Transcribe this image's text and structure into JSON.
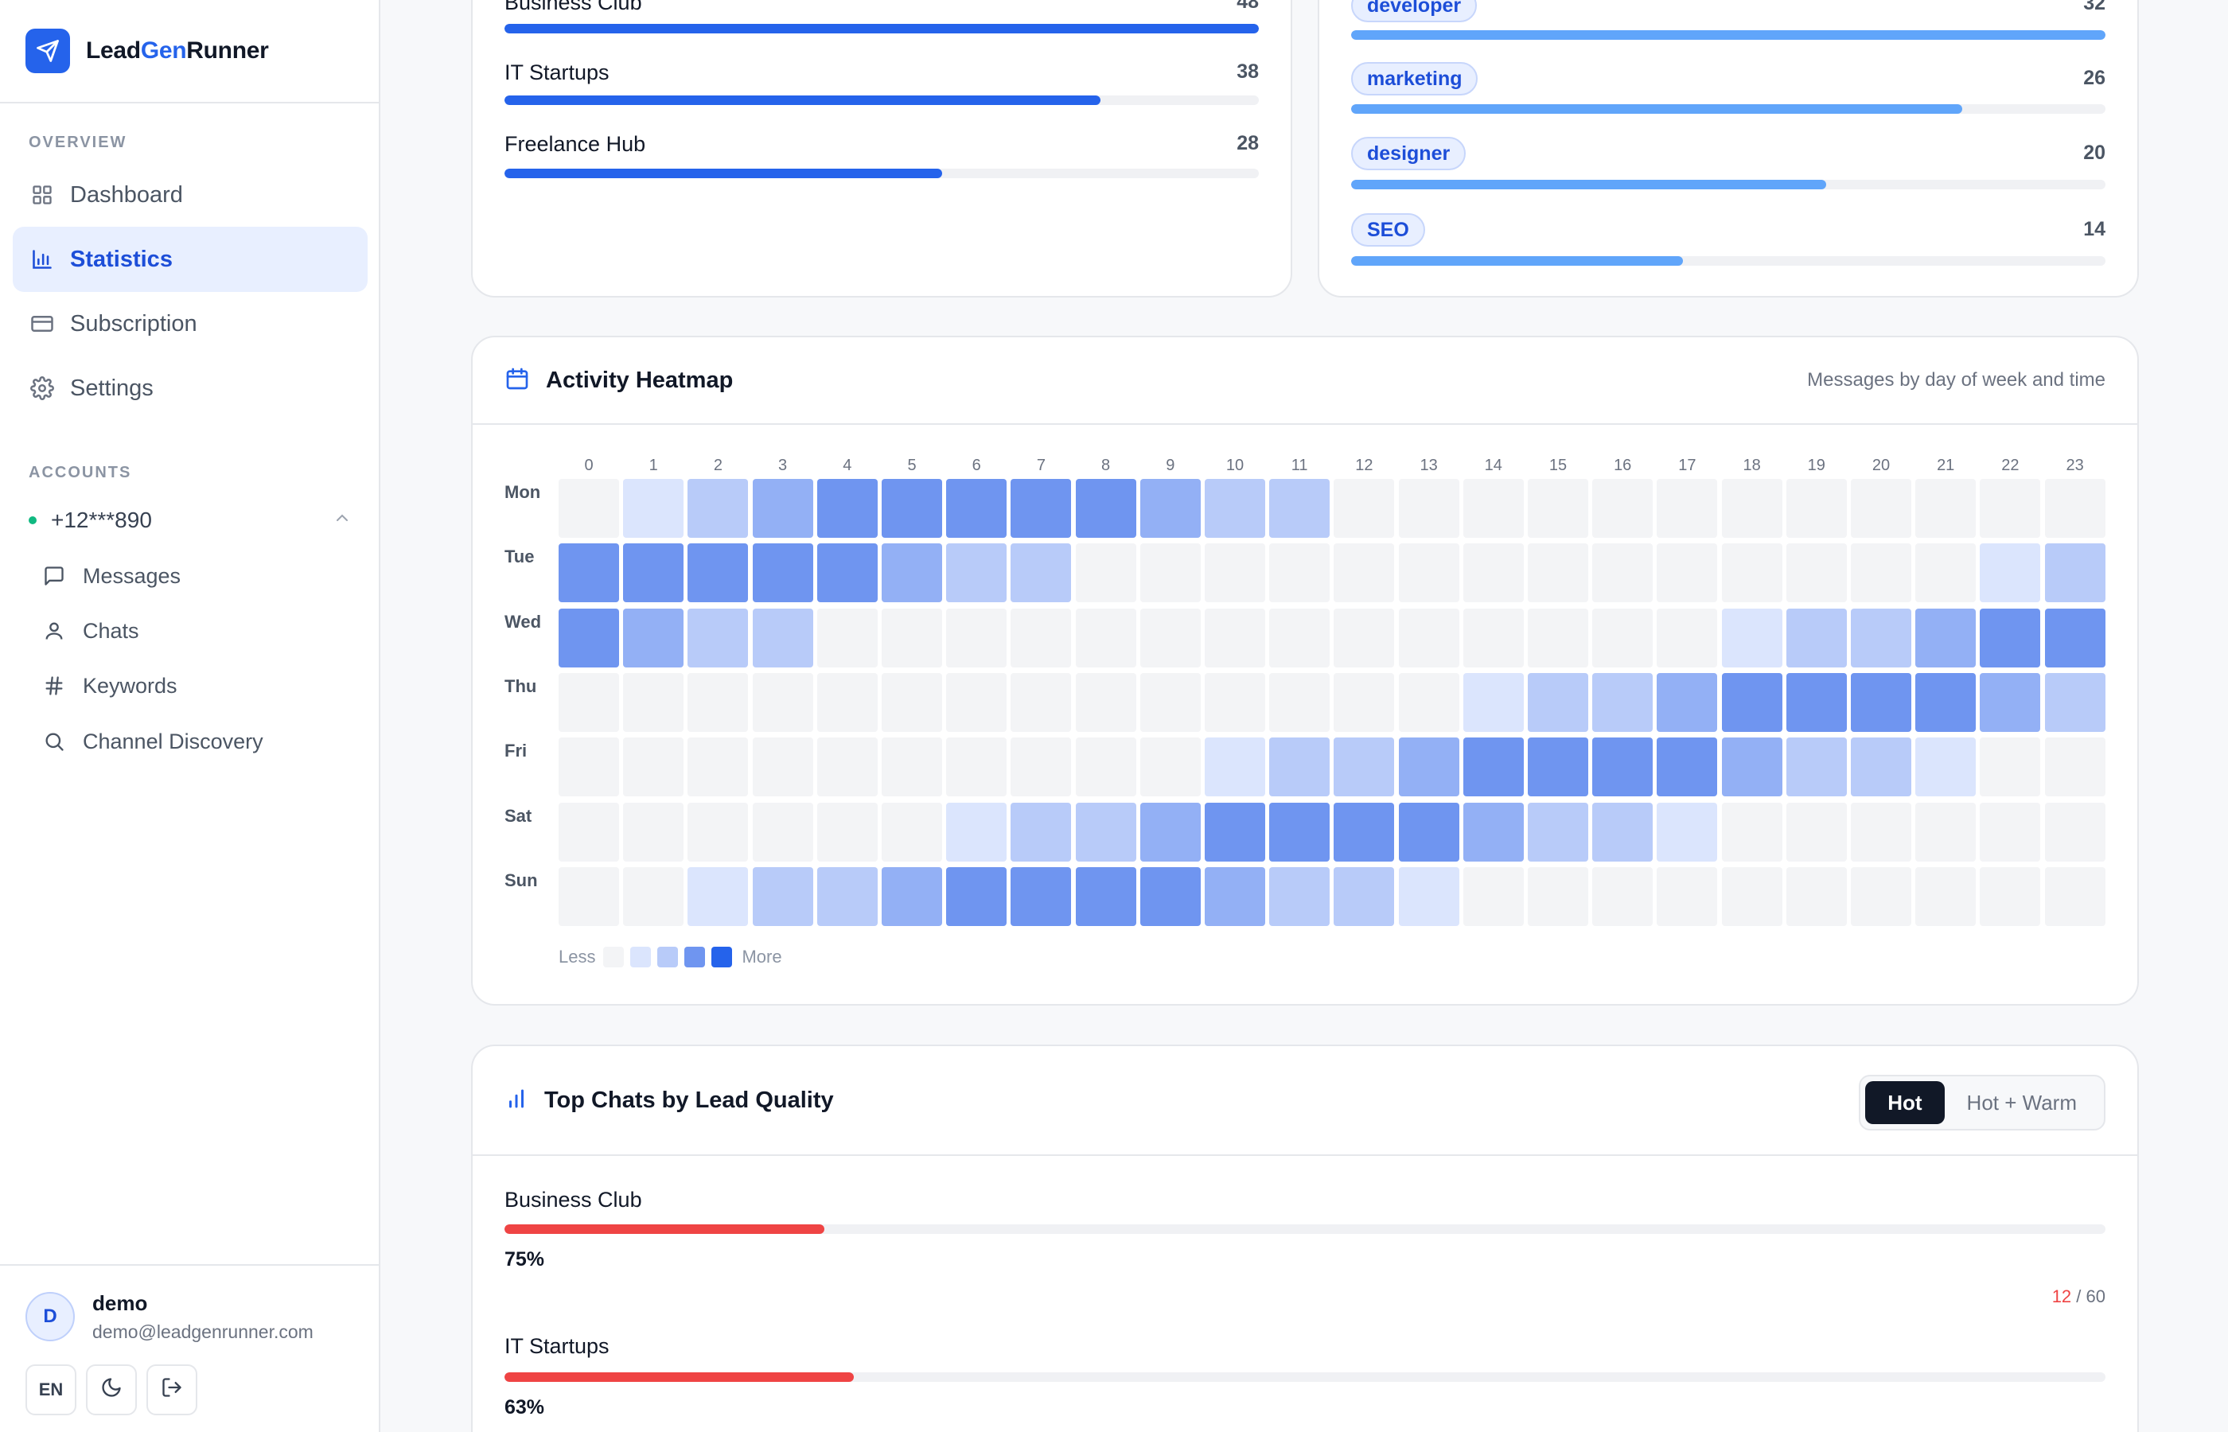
{
  "brand": {
    "name_part1": "Lead",
    "name_part2": "Gen",
    "name_part3": "Runner"
  },
  "sidebar": {
    "overview_label": "OVERVIEW",
    "nav": [
      {
        "label": "Dashboard",
        "icon": "grid-icon",
        "active": false
      },
      {
        "label": "Statistics",
        "icon": "bar-chart-icon",
        "active": true
      },
      {
        "label": "Subscription",
        "icon": "credit-card-icon",
        "active": false
      },
      {
        "label": "Settings",
        "icon": "gear-icon",
        "active": false
      }
    ],
    "accounts_label": "ACCOUNTS",
    "account": {
      "phone": "+12***890",
      "status_color": "#10b981"
    },
    "sub_items": [
      {
        "label": "Messages",
        "icon": "message-icon"
      },
      {
        "label": "Chats",
        "icon": "user-icon"
      },
      {
        "label": "Keywords",
        "icon": "hash-icon"
      },
      {
        "label": "Channel Discovery",
        "icon": "search-icon"
      }
    ],
    "user": {
      "initial": "D",
      "name": "demo",
      "email": "demo@leadgenrunner.com",
      "lang_button": "EN"
    }
  },
  "top_chats_card": {
    "rows": [
      {
        "label": "Business Club",
        "value": "48",
        "ratio": 1.0
      },
      {
        "label": "IT Startups",
        "value": "38",
        "ratio": 0.79
      },
      {
        "label": "Freelance Hub",
        "value": "28",
        "ratio": 0.58
      }
    ]
  },
  "keywords_card": {
    "rows": [
      {
        "label": "developer",
        "value": "32",
        "ratio": 1.0
      },
      {
        "label": "marketing",
        "value": "26",
        "ratio": 0.81
      },
      {
        "label": "designer",
        "value": "20",
        "ratio": 0.63
      },
      {
        "label": "SEO",
        "value": "14",
        "ratio": 0.44
      }
    ]
  },
  "heatmap": {
    "title": "Activity Heatmap",
    "subtitle": "Messages by day of week and time",
    "hours": [
      "0",
      "1",
      "2",
      "3",
      "4",
      "5",
      "6",
      "7",
      "8",
      "9",
      "10",
      "11",
      "12",
      "13",
      "14",
      "15",
      "16",
      "17",
      "18",
      "19",
      "20",
      "21",
      "22",
      "23"
    ],
    "days": [
      "Mon",
      "Tue",
      "Wed",
      "Thu",
      "Fri",
      "Sat",
      "Sun"
    ],
    "levels": [
      [
        0,
        1,
        2,
        3,
        4,
        4,
        4,
        4,
        4,
        3,
        2,
        2,
        0,
        0,
        0,
        0,
        0,
        0,
        0,
        0,
        0,
        0,
        0,
        0
      ],
      [
        4,
        4,
        4,
        4,
        4,
        3,
        2,
        2,
        0,
        0,
        0,
        0,
        0,
        0,
        0,
        0,
        0,
        0,
        0,
        0,
        0,
        0,
        1,
        2
      ],
      [
        4,
        3,
        2,
        2,
        0,
        0,
        0,
        0,
        0,
        0,
        0,
        0,
        0,
        0,
        0,
        0,
        0,
        0,
        1,
        2,
        2,
        3,
        4,
        4
      ],
      [
        0,
        0,
        0,
        0,
        0,
        0,
        0,
        0,
        0,
        0,
        0,
        0,
        0,
        0,
        1,
        2,
        2,
        3,
        4,
        4,
        4,
        4,
        3,
        2
      ],
      [
        0,
        0,
        0,
        0,
        0,
        0,
        0,
        0,
        0,
        0,
        1,
        2,
        2,
        3,
        4,
        4,
        4,
        4,
        3,
        2,
        2,
        1,
        0,
        0
      ],
      [
        0,
        0,
        0,
        0,
        0,
        0,
        1,
        2,
        2,
        3,
        4,
        4,
        4,
        4,
        3,
        2,
        2,
        1,
        0,
        0,
        0,
        0,
        0,
        0
      ],
      [
        0,
        0,
        1,
        2,
        2,
        3,
        4,
        4,
        4,
        4,
        3,
        2,
        2,
        1,
        0,
        0,
        0,
        0,
        0,
        0,
        0,
        0,
        0,
        0
      ]
    ],
    "palette": [
      "#f3f4f6",
      "#dbe5fd",
      "#b8cbf9",
      "#93b0f5",
      "#6f95f0",
      "#4a7ce9"
    ],
    "legend_less": "Less",
    "legend_more": "More",
    "legend_colors": [
      "#f3f4f6",
      "#dbe5fd",
      "#b8cbf9",
      "#6f95f0",
      "#2563eb"
    ]
  },
  "lead_quality": {
    "title": "Top Chats by Lead Quality",
    "toggle": [
      "Hot",
      "Hot + Warm"
    ],
    "rows": [
      {
        "label": "Business Club",
        "percent": "75%",
        "ratio": 0.2,
        "hot": "12",
        "total": "/ 60"
      },
      {
        "label": "IT Startups",
        "percent": "63%",
        "ratio": 0.218
      }
    ]
  },
  "colors": {
    "accent": "#2563eb",
    "bar_light": "#60a5fa",
    "hot": "#ef4444"
  }
}
